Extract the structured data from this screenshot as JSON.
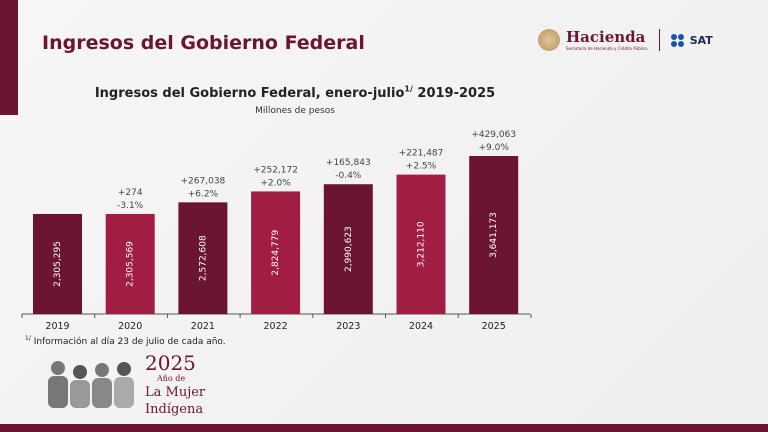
{
  "header": {
    "title": "Ingresos del Gobierno Federal",
    "logo_hacienda": "Hacienda",
    "logo_hacienda_sub": "Secretaría de Hacienda y Crédito Público",
    "logo_sat": "SAT"
  },
  "chart_data": {
    "type": "bar",
    "title": "Ingresos del Gobierno Federal, enero-julio",
    "title_sup": "1/",
    "title_years": " 2019-2025",
    "subtitle": "Millones de pesos",
    "categories": [
      "2019",
      "2020",
      "2021",
      "2022",
      "2023",
      "2024",
      "2025"
    ],
    "values": [
      2305295,
      2305569,
      2572608,
      2824779,
      2990623,
      3212110,
      3641173
    ],
    "value_labels": [
      "2,305,295",
      "2,305,569",
      "2,572,608",
      "2,824,779",
      "2,990,623",
      "3,212,110",
      "3,641,173"
    ],
    "change_abs": [
      "",
      "+274",
      "+267,038",
      "+252,172",
      "+165,843",
      "+221,487",
      "+429,063"
    ],
    "change_pct": [
      "",
      "-3.1%",
      "+6.2%",
      "+2.0%",
      "-0.4%",
      "+2.5%",
      "+9.0%"
    ],
    "colors": [
      "#6b1530",
      "#a21d42",
      "#6b1530",
      "#a21d42",
      "#6b1530",
      "#a21d42",
      "#6b1530"
    ],
    "ylim": [
      0,
      3641173
    ]
  },
  "footnote": {
    "sup": "1/",
    "text": " Información al día 23 de julio de cada año."
  },
  "banner": {
    "year": "2025",
    "line1": "Año de",
    "line2": "La Mujer",
    "line3": "Indígena"
  }
}
